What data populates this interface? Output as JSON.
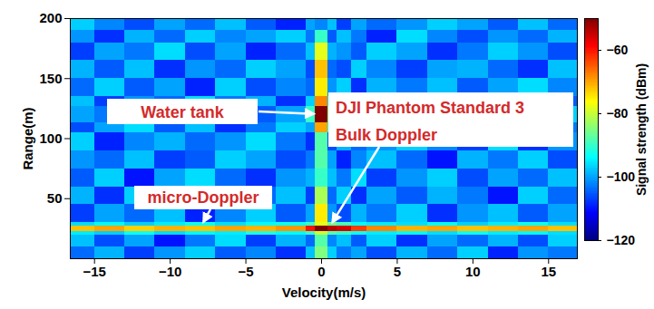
{
  "chart_data": {
    "type": "heatmap",
    "x_label": "Velocity(m/s)",
    "y_label": "Range(m)",
    "xlim": [
      -16.6,
      16.9
    ],
    "xticks": [
      -15,
      -10,
      -5,
      0,
      5,
      10,
      15
    ],
    "ylim": [
      0,
      200
    ],
    "yticks": [
      50,
      100,
      150,
      200
    ],
    "velocity_edges": [
      -16.6,
      -15,
      -13,
      -11,
      -9,
      -7,
      -5,
      -3,
      -1,
      -0.4,
      0.4,
      1,
      2,
      3,
      5,
      7,
      9,
      11,
      13,
      15,
      16.9
    ],
    "range_edges": [
      0,
      10,
      20,
      23,
      27,
      30,
      45,
      60,
      75,
      90,
      105,
      113,
      127,
      135,
      150,
      165,
      180,
      190,
      200
    ],
    "cells": [
      [
        -104,
        -99,
        -107,
        -101,
        -97,
        -105,
        -102,
        -108,
        -98,
        -85,
        -97,
        -103,
        -100,
        -106,
        -99,
        -104,
        -97,
        -109,
        -101,
        -103
      ],
      [
        -98,
        -106,
        -100,
        -110,
        -103,
        -96,
        -107,
        -99,
        -104,
        -88,
        -102,
        -98,
        -105,
        -97,
        -108,
        -100,
        -104,
        -99,
        -106,
        -97
      ],
      [
        -95,
        -97,
        -93,
        -96,
        -94,
        -95,
        -92,
        -94,
        -90,
        -80,
        -88,
        -90,
        -93,
        -95,
        -94,
        -96,
        -93,
        -95,
        -94,
        -96
      ],
      [
        -72,
        -70,
        -73,
        -71,
        -72,
        -70,
        -71,
        -69,
        -60,
        -50,
        -54,
        -56,
        -63,
        -68,
        -71,
        -70,
        -72,
        -71,
        -70,
        -72
      ],
      [
        -96,
        -94,
        -97,
        -95,
        -93,
        -96,
        -94,
        -93,
        -90,
        -78,
        -86,
        -89,
        -94,
        -95,
        -96,
        -94,
        -97,
        -95,
        -93,
        -96
      ],
      [
        -107,
        -100,
        -104,
        -98,
        -109,
        -102,
        -97,
        -105,
        -100,
        -75,
        -101,
        -106,
        -99,
        -103,
        -97,
        -108,
        -101,
        -98,
        -105,
        -100
      ],
      [
        -99,
        -108,
        -97,
        -103,
        -100,
        -106,
        -104,
        -98,
        -107,
        -82,
        -104,
        -97,
        -108,
        -100,
        -105,
        -99,
        -103,
        -110,
        -97,
        -104
      ],
      [
        -105,
        -97,
        -110,
        -100,
        -96,
        -104,
        -108,
        -101,
        -99,
        -90,
        -98,
        -103,
        -96,
        -107,
        -101,
        -97,
        -106,
        -100,
        -104,
        -98
      ],
      [
        -101,
        -104,
        -98,
        -107,
        -105,
        -97,
        -100,
        -106,
        -103,
        -88,
        -100,
        -109,
        -102,
        -98,
        -104,
        -110,
        -99,
        -103,
        -97,
        -106
      ],
      [
        -97,
        -109,
        -102,
        -99,
        -104,
        -101,
        -96,
        -103,
        -108,
        -88,
        -106,
        -99,
        -104,
        -101,
        -97,
        -102,
        -107,
        -96,
        -108,
        -101
      ],
      [
        -106,
        -100,
        -96,
        -105,
        -98,
        -108,
        -103,
        -97,
        -100,
        -70,
        -92,
        -104,
        -98,
        -106,
        -100,
        -96,
        -101,
        -105,
        -99,
        -103
      ],
      [
        -100,
        -103,
        -107,
        -97,
        -102,
        -99,
        -105,
        -100,
        -90,
        -50,
        -85,
        -100,
        -105,
        -97,
        -108,
        -103,
        -98,
        -102,
        -106,
        -97
      ],
      [
        -98,
        -107,
        -101,
        -104,
        -96,
        -103,
        -99,
        -108,
        -97,
        -68,
        -96,
        -103,
        -100,
        -104,
        -99,
        -106,
        -97,
        -109,
        -100,
        -105
      ],
      [
        -104,
        -97,
        -105,
        -100,
        -109,
        -97,
        -106,
        -102,
        -104,
        -75,
        -101,
        -97,
        -108,
        -99,
        -103,
        -98,
        -105,
        -100,
        -96,
        -102
      ],
      [
        -99,
        -105,
        -98,
        -108,
        -101,
        -104,
        -97,
        -100,
        -106,
        -72,
        -104,
        -106,
        -97,
        -102,
        -107,
        -100,
        -99,
        -104,
        -108,
        -98
      ],
      [
        -107,
        -100,
        -103,
        -96,
        -106,
        -100,
        -109,
        -104,
        -98,
        -78,
        -99,
        -101,
        -105,
        -97,
        -100,
        -108,
        -103,
        -97,
        -101,
        -106
      ],
      [
        -101,
        -108,
        -99,
        -104,
        -97,
        -102,
        -100,
        -97,
        -103,
        -90,
        -105,
        -98,
        -103,
        -109,
        -96,
        -102,
        -106,
        -101,
        -104,
        -99
      ],
      [
        -97,
        -102,
        -106,
        -100,
        -104,
        -98,
        -105,
        -109,
        -100,
        -102,
        -98,
        -107,
        -100,
        -104,
        -101,
        -97,
        -100,
        -105,
        -98,
        -104
      ]
    ],
    "colorbar": {
      "label": "Signal strength (dBm)",
      "lim": [
        -120,
        -50
      ],
      "ticks": [
        -60,
        -80,
        -100,
        -120
      ]
    },
    "annotations": [
      {
        "lines": [
          "Water tank"
        ],
        "x": 0,
        "y": 120
      },
      {
        "lines": [
          "DJI Phantom Standard 3",
          "Bulk Doppler"
        ],
        "x": 0.5,
        "y": 25
      },
      {
        "lines": [
          "micro-Doppler"
        ],
        "x": -8,
        "y": 25
      }
    ]
  }
}
